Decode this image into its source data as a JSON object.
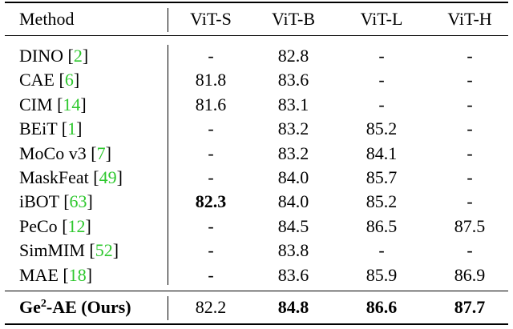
{
  "table": {
    "headers": {
      "method": "Method",
      "vit_s": "ViT-S",
      "vit_b": "ViT-B",
      "vit_l": "ViT-L",
      "vit_h": "ViT-H"
    },
    "rows": [
      {
        "name": "DINO",
        "ref": "2",
        "s": "-",
        "b": "82.8",
        "l": "-",
        "h": "-"
      },
      {
        "name": "CAE",
        "ref": "6",
        "s": "81.8",
        "b": "83.6",
        "l": "-",
        "h": "-"
      },
      {
        "name": "CIM",
        "ref": "14",
        "s": "81.6",
        "b": "83.1",
        "l": "-",
        "h": "-"
      },
      {
        "name": "BEiT",
        "ref": "1",
        "s": "-",
        "b": "83.2",
        "l": "85.2",
        "h": "-"
      },
      {
        "name": "MoCo v3",
        "ref": "7",
        "s": "-",
        "b": "83.2",
        "l": "84.1",
        "h": "-"
      },
      {
        "name": "MaskFeat",
        "ref": "49",
        "s": "-",
        "b": "84.0",
        "l": "85.7",
        "h": "-"
      },
      {
        "name": "iBOT",
        "ref": "63",
        "s": "82.3",
        "b": "84.0",
        "l": "85.2",
        "h": "-"
      },
      {
        "name": "PeCo",
        "ref": "12",
        "s": "-",
        "b": "84.5",
        "l": "86.5",
        "h": "87.5"
      },
      {
        "name": "SimMIM",
        "ref": "52",
        "s": "-",
        "b": "83.8",
        "l": "-",
        "h": "-"
      },
      {
        "name": "MAE",
        "ref": "18",
        "s": "-",
        "b": "83.6",
        "l": "85.9",
        "h": "86.9"
      }
    ],
    "ours": {
      "name_prefix": "Ge",
      "name_sup": "2",
      "name_suffix": "-AE (Ours)",
      "s": "82.2",
      "b": "84.8",
      "l": "86.6",
      "h": "87.7"
    }
  }
}
